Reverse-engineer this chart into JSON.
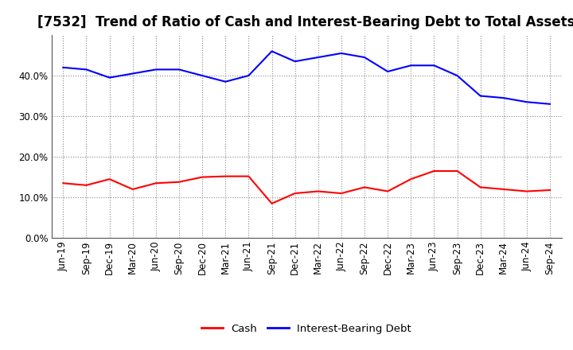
{
  "title": "[7532]  Trend of Ratio of Cash and Interest-Bearing Debt to Total Assets",
  "x_labels": [
    "Jun-19",
    "Sep-19",
    "Dec-19",
    "Mar-20",
    "Jun-20",
    "Sep-20",
    "Dec-20",
    "Mar-21",
    "Jun-21",
    "Sep-21",
    "Dec-21",
    "Mar-22",
    "Jun-22",
    "Sep-22",
    "Dec-22",
    "Mar-23",
    "Jun-23",
    "Sep-23",
    "Dec-23",
    "Mar-24",
    "Jun-24",
    "Sep-24"
  ],
  "cash": [
    13.5,
    13.0,
    14.5,
    12.0,
    13.5,
    13.8,
    15.0,
    15.2,
    15.2,
    8.5,
    11.0,
    11.5,
    11.0,
    12.5,
    11.5,
    14.5,
    16.5,
    16.5,
    12.5,
    12.0,
    11.5,
    11.8
  ],
  "debt": [
    42.0,
    41.5,
    39.5,
    40.5,
    41.5,
    41.5,
    40.0,
    38.5,
    40.0,
    46.0,
    43.5,
    44.5,
    45.5,
    44.5,
    41.0,
    42.5,
    42.5,
    40.0,
    35.0,
    34.5,
    33.5,
    33.0
  ],
  "cash_color": "#ff0000",
  "debt_color": "#0000ff",
  "background_color": "#ffffff",
  "grid_color": "#888888",
  "ylim": [
    0,
    50
  ],
  "yticks": [
    0,
    10,
    20,
    30,
    40
  ],
  "legend_labels": [
    "Cash",
    "Interest-Bearing Debt"
  ],
  "title_fontsize": 12,
  "axis_fontsize": 8.5,
  "legend_fontsize": 9.5
}
